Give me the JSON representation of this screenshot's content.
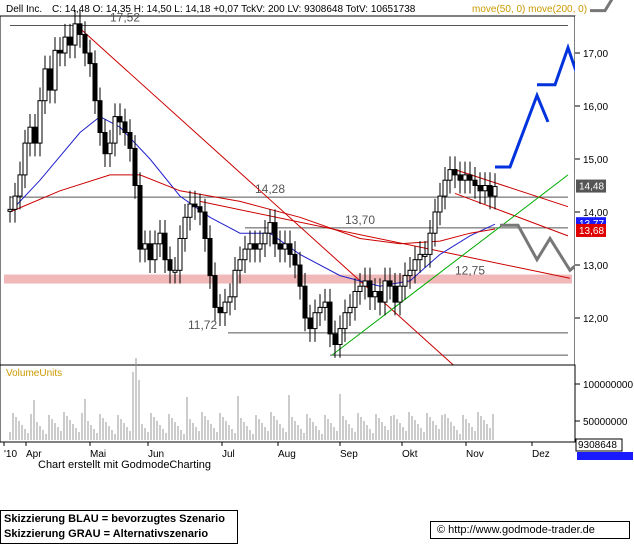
{
  "header": {
    "symbol": "Dell Inc.",
    "quote": "C: 14,48 O: 14,35 H: 14,50 L: 14,18 +0,07 TckV: 200 LV: 9308648 TotV: 10651738",
    "ma_label": "move(50, 0) move(200, 0)"
  },
  "chart_data": {
    "type": "candlestick",
    "x_tick_labels": [
      "'10",
      "Apr",
      "Mai",
      "Jun",
      "Jul",
      "Aug",
      "Sep",
      "Okt",
      "Nov",
      "Dez"
    ],
    "y_tick_labels": [
      "17,00",
      "16,00",
      "15,00",
      "14,00",
      "13,00",
      "12,00"
    ],
    "ylim": [
      11.0,
      18.0
    ],
    "price_labels": [
      {
        "text": "17,52",
        "value": 17.52
      },
      {
        "text": "14,28",
        "value": 14.28
      },
      {
        "text": "13,70",
        "value": 13.7
      },
      {
        "text": "12,75",
        "value": 12.75
      },
      {
        "text": "11,72",
        "value": 11.72
      }
    ],
    "last_value_tags": [
      {
        "text": "14,48",
        "value": 14.48,
        "color": "#555555"
      },
      {
        "text": "13,77",
        "value": 13.77,
        "color": "#1a1aff"
      },
      {
        "text": "13,68",
        "value": 13.68,
        "color": "#e00000"
      }
    ],
    "price_series": [
      {
        "x": 10,
        "y": 14.05
      },
      {
        "x": 15,
        "y": 14.3
      },
      {
        "x": 20,
        "y": 14.7
      },
      {
        "x": 25,
        "y": 15.3
      },
      {
        "x": 30,
        "y": 15.6
      },
      {
        "x": 35,
        "y": 15.3
      },
      {
        "x": 40,
        "y": 16.1
      },
      {
        "x": 45,
        "y": 16.7
      },
      {
        "x": 50,
        "y": 16.3
      },
      {
        "x": 55,
        "y": 17.05
      },
      {
        "x": 60,
        "y": 17.0
      },
      {
        "x": 65,
        "y": 17.3
      },
      {
        "x": 70,
        "y": 17.15
      },
      {
        "x": 75,
        "y": 17.55
      },
      {
        "x": 80,
        "y": 17.35
      },
      {
        "x": 85,
        "y": 17.0
      },
      {
        "x": 90,
        "y": 16.8
      },
      {
        "x": 95,
        "y": 16.1
      },
      {
        "x": 100,
        "y": 15.5
      },
      {
        "x": 105,
        "y": 15.1
      },
      {
        "x": 110,
        "y": 15.3
      },
      {
        "x": 115,
        "y": 15.8
      },
      {
        "x": 120,
        "y": 15.7
      },
      {
        "x": 125,
        "y": 15.5
      },
      {
        "x": 130,
        "y": 15.2
      },
      {
        "x": 135,
        "y": 14.5
      },
      {
        "x": 140,
        "y": 13.3
      },
      {
        "x": 145,
        "y": 13.4
      },
      {
        "x": 150,
        "y": 13.1
      },
      {
        "x": 155,
        "y": 13.4
      },
      {
        "x": 160,
        "y": 13.6
      },
      {
        "x": 165,
        "y": 13.1
      },
      {
        "x": 170,
        "y": 12.9
      },
      {
        "x": 175,
        "y": 12.9
      },
      {
        "x": 180,
        "y": 13.5
      },
      {
        "x": 185,
        "y": 13.9
      },
      {
        "x": 190,
        "y": 14.15
      },
      {
        "x": 195,
        "y": 14.1
      },
      {
        "x": 200,
        "y": 14.0
      },
      {
        "x": 205,
        "y": 13.5
      },
      {
        "x": 210,
        "y": 12.8
      },
      {
        "x": 215,
        "y": 12.2
      },
      {
        "x": 220,
        "y": 12.1
      },
      {
        "x": 225,
        "y": 12.3
      },
      {
        "x": 230,
        "y": 12.4
      },
      {
        "x": 235,
        "y": 12.9
      },
      {
        "x": 240,
        "y": 13.1
      },
      {
        "x": 245,
        "y": 13.3
      },
      {
        "x": 250,
        "y": 13.4
      },
      {
        "x": 255,
        "y": 13.3
      },
      {
        "x": 260,
        "y": 13.4
      },
      {
        "x": 265,
        "y": 13.6
      },
      {
        "x": 270,
        "y": 13.8
      },
      {
        "x": 275,
        "y": 13.4
      },
      {
        "x": 280,
        "y": 13.3
      },
      {
        "x": 285,
        "y": 13.4
      },
      {
        "x": 290,
        "y": 13.2
      },
      {
        "x": 295,
        "y": 13.0
      },
      {
        "x": 300,
        "y": 12.6
      },
      {
        "x": 305,
        "y": 12.0
      },
      {
        "x": 310,
        "y": 11.8
      },
      {
        "x": 315,
        "y": 12.1
      },
      {
        "x": 320,
        "y": 12.2
      },
      {
        "x": 325,
        "y": 12.3
      },
      {
        "x": 330,
        "y": 11.7
      },
      {
        "x": 335,
        "y": 11.5
      },
      {
        "x": 340,
        "y": 11.8
      },
      {
        "x": 345,
        "y": 12.1
      },
      {
        "x": 350,
        "y": 12.2
      },
      {
        "x": 355,
        "y": 12.5
      },
      {
        "x": 360,
        "y": 12.6
      },
      {
        "x": 365,
        "y": 12.7
      },
      {
        "x": 370,
        "y": 12.4
      },
      {
        "x": 375,
        "y": 12.5
      },
      {
        "x": 380,
        "y": 12.3
      },
      {
        "x": 385,
        "y": 12.7
      },
      {
        "x": 390,
        "y": 12.6
      },
      {
        "x": 395,
        "y": 12.3
      },
      {
        "x": 400,
        "y": 12.6
      },
      {
        "x": 405,
        "y": 12.8
      },
      {
        "x": 410,
        "y": 12.9
      },
      {
        "x": 415,
        "y": 13.1
      },
      {
        "x": 420,
        "y": 13.2
      },
      {
        "x": 425,
        "y": 13.2
      },
      {
        "x": 430,
        "y": 13.6
      },
      {
        "x": 435,
        "y": 14.0
      },
      {
        "x": 440,
        "y": 14.3
      },
      {
        "x": 445,
        "y": 14.6
      },
      {
        "x": 450,
        "y": 14.8
      },
      {
        "x": 455,
        "y": 14.7
      },
      {
        "x": 460,
        "y": 14.6
      },
      {
        "x": 465,
        "y": 14.7
      },
      {
        "x": 470,
        "y": 14.6
      },
      {
        "x": 475,
        "y": 14.5
      },
      {
        "x": 480,
        "y": 14.4
      },
      {
        "x": 485,
        "y": 14.5
      },
      {
        "x": 490,
        "y": 14.3
      },
      {
        "x": 495,
        "y": 14.48
      }
    ],
    "scenario_blue": [
      {
        "x": 495,
        "y": 14.85
      },
      {
        "x": 510,
        "y": 14.85
      },
      {
        "x": 537,
        "y": 16.2
      },
      {
        "x": 548,
        "y": 15.7
      }
    ],
    "scenario_blue_2": [
      {
        "x": 537,
        "y": 16.4
      },
      {
        "x": 555,
        "y": 16.4
      },
      {
        "x": 568,
        "y": 17.1
      },
      {
        "x": 577,
        "y": 16.6
      },
      {
        "x": 595,
        "y": 17.4
      },
      {
        "x": 605,
        "y": 17.0
      }
    ],
    "scenario_gray": [
      {
        "x": 500,
        "y": 13.75
      },
      {
        "x": 518,
        "y": 13.75
      },
      {
        "x": 537,
        "y": 13.1
      },
      {
        "x": 550,
        "y": 13.5
      },
      {
        "x": 570,
        "y": 12.9
      },
      {
        "x": 582,
        "y": 13.1
      }
    ],
    "volume_labels": [
      "100000000",
      "50000000",
      "9308648"
    ],
    "volume_panel_label": "VolumeUnits"
  },
  "footer": {
    "credit": "Chart erstellt mit GodmodeCharting",
    "legend_blue": "Skizzierung BLAU = bevorzugtes Szenario",
    "legend_gray": "Skizzierung GRAU = Alternativszenario",
    "url": "© http://www.godmode-trader.de"
  }
}
